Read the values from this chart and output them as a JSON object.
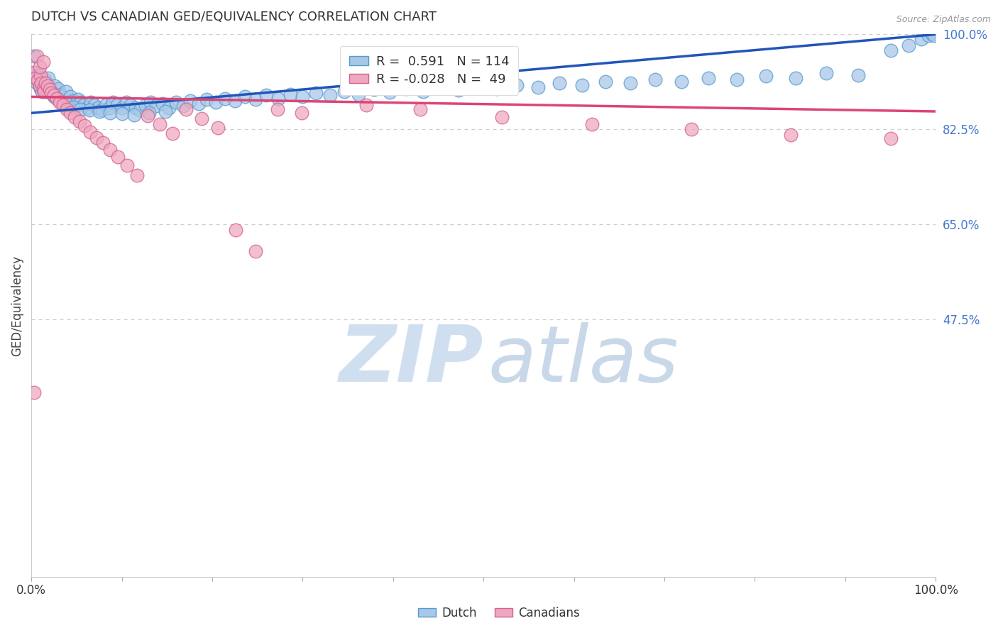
{
  "title": "DUTCH VS CANADIAN GED/EQUIVALENCY CORRELATION CHART",
  "source": "Source: ZipAtlas.com",
  "ylabel": "GED/Equivalency",
  "right_yticks": [
    1.0,
    0.825,
    0.65,
    0.475
  ],
  "right_ytick_labels": [
    "100.0%",
    "82.5%",
    "65.0%",
    "47.5%"
  ],
  "legend_r_dutch": "R =  0.591   N = 114",
  "legend_r_canadians": "R = -0.028   N =  49",
  "blue_color": "#a8c8e8",
  "blue_edge_color": "#5599cc",
  "pink_color": "#f0a8c0",
  "pink_edge_color": "#d06090",
  "blue_line_color": "#2255bb",
  "pink_line_color": "#dd4477",
  "watermark_zip_color": "#d0dff0",
  "watermark_atlas_color": "#c8d8e8",
  "background_color": "#ffffff",
  "xlim": [
    0.0,
    1.0
  ],
  "ylim": [
    0.0,
    1.0
  ],
  "dutch_x": [
    0.004,
    0.005,
    0.006,
    0.007,
    0.008,
    0.009,
    0.01,
    0.011,
    0.012,
    0.013,
    0.014,
    0.015,
    0.016,
    0.017,
    0.018,
    0.019,
    0.02,
    0.022,
    0.024,
    0.026,
    0.028,
    0.03,
    0.032,
    0.034,
    0.036,
    0.038,
    0.04,
    0.043,
    0.046,
    0.049,
    0.052,
    0.055,
    0.058,
    0.062,
    0.066,
    0.07,
    0.074,
    0.078,
    0.082,
    0.086,
    0.09,
    0.095,
    0.1,
    0.105,
    0.11,
    0.115,
    0.12,
    0.126,
    0.132,
    0.138,
    0.145,
    0.152,
    0.16,
    0.168,
    0.176,
    0.185,
    0.194,
    0.204,
    0.214,
    0.225,
    0.236,
    0.248,
    0.26,
    0.273,
    0.286,
    0.3,
    0.315,
    0.33,
    0.346,
    0.362,
    0.379,
    0.396,
    0.414,
    0.433,
    0.452,
    0.472,
    0.493,
    0.515,
    0.537,
    0.56,
    0.584,
    0.609,
    0.635,
    0.662,
    0.69,
    0.719,
    0.749,
    0.78,
    0.812,
    0.845,
    0.879,
    0.914,
    0.95,
    0.97,
    0.984,
    0.992,
    0.996,
    0.998,
    0.003,
    0.008,
    0.013,
    0.019,
    0.025,
    0.031,
    0.038,
    0.046,
    0.054,
    0.064,
    0.075,
    0.087,
    0.1,
    0.114,
    0.13,
    0.148
  ],
  "dutch_y": [
    0.92,
    0.93,
    0.91,
    0.925,
    0.915,
    0.905,
    0.9,
    0.92,
    0.895,
    0.91,
    0.9,
    0.895,
    0.915,
    0.905,
    0.895,
    0.92,
    0.9,
    0.895,
    0.89,
    0.905,
    0.885,
    0.9,
    0.89,
    0.885,
    0.88,
    0.895,
    0.875,
    0.885,
    0.878,
    0.87,
    0.88,
    0.875,
    0.87,
    0.865,
    0.875,
    0.87,
    0.865,
    0.86,
    0.87,
    0.865,
    0.875,
    0.87,
    0.865,
    0.875,
    0.87,
    0.865,
    0.86,
    0.87,
    0.875,
    0.868,
    0.872,
    0.865,
    0.875,
    0.868,
    0.878,
    0.872,
    0.88,
    0.875,
    0.882,
    0.878,
    0.885,
    0.88,
    0.888,
    0.882,
    0.89,
    0.885,
    0.892,
    0.888,
    0.895,
    0.89,
    0.898,
    0.893,
    0.9,
    0.895,
    0.902,
    0.897,
    0.904,
    0.9,
    0.907,
    0.903,
    0.91,
    0.906,
    0.913,
    0.91,
    0.917,
    0.913,
    0.92,
    0.917,
    0.924,
    0.92,
    0.928,
    0.925,
    0.97,
    0.98,
    0.992,
    0.998,
    1.0,
    0.998,
    0.96,
    0.915,
    0.905,
    0.895,
    0.885,
    0.878,
    0.872,
    0.866,
    0.862,
    0.86,
    0.858,
    0.856,
    0.854,
    0.852,
    0.855,
    0.858
  ],
  "canadian_x": [
    0.003,
    0.005,
    0.007,
    0.009,
    0.01,
    0.011,
    0.013,
    0.014,
    0.016,
    0.018,
    0.02,
    0.022,
    0.025,
    0.028,
    0.031,
    0.035,
    0.039,
    0.043,
    0.048,
    0.053,
    0.059,
    0.065,
    0.072,
    0.079,
    0.087,
    0.096,
    0.106,
    0.117,
    0.129,
    0.142,
    0.156,
    0.171,
    0.188,
    0.206,
    0.226,
    0.248,
    0.272,
    0.299,
    0.37,
    0.43,
    0.52,
    0.62,
    0.73,
    0.84,
    0.95,
    0.003,
    0.006,
    0.009,
    0.013
  ],
  "canadian_y": [
    0.93,
    0.92,
    0.915,
    0.905,
    0.925,
    0.91,
    0.9,
    0.895,
    0.91,
    0.905,
    0.898,
    0.892,
    0.888,
    0.882,
    0.875,
    0.87,
    0.862,
    0.856,
    0.848,
    0.84,
    0.832,
    0.82,
    0.81,
    0.8,
    0.788,
    0.774,
    0.758,
    0.74,
    0.85,
    0.835,
    0.818,
    0.862,
    0.845,
    0.828,
    0.64,
    0.6,
    0.862,
    0.856,
    0.87,
    0.862,
    0.848,
    0.835,
    0.825,
    0.815,
    0.808,
    0.34,
    0.96,
    0.94,
    0.95
  ],
  "dutch_line_x": [
    0.0,
    1.0
  ],
  "dutch_line_y": [
    0.855,
    1.0
  ],
  "canadian_line_y": [
    0.885,
    0.858
  ]
}
